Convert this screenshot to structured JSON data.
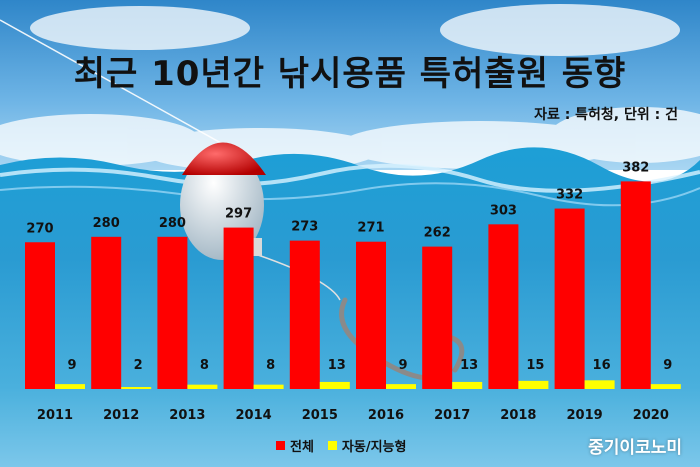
{
  "header": {
    "title": "최근 10년간 낚시용품 특허출원 동향",
    "source": "자료 : 특허청, 단위 : 건"
  },
  "brand": "중기이코노미",
  "colors": {
    "series_total": "#ff0000",
    "series_auto": "#ffff00"
  },
  "chart_data": {
    "type": "bar",
    "categories": [
      "2011",
      "2012",
      "2013",
      "2014",
      "2015",
      "2016",
      "2017",
      "2018",
      "2019",
      "2020"
    ],
    "series": [
      {
        "name": "전체",
        "values": [
          270,
          280,
          280,
          297,
          273,
          271,
          262,
          303,
          332,
          382
        ]
      },
      {
        "name": "자동/지능형",
        "values": [
          9,
          2,
          8,
          8,
          13,
          9,
          13,
          15,
          16,
          9
        ]
      }
    ],
    "title": "최근 10년간 낚시용품 특허출원 동향",
    "xlabel": "",
    "ylabel": "",
    "legend": "bottom-center",
    "grid": false
  }
}
